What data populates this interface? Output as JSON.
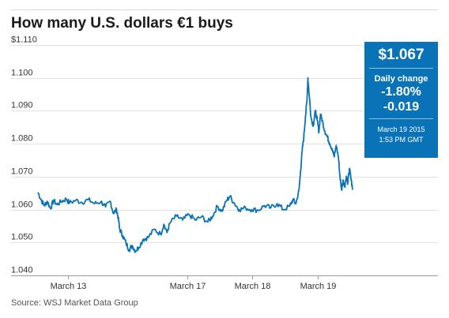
{
  "chart_data": {
    "type": "line",
    "title": "How many U.S. dollars €1 buys",
    "source": "Source: WSJ Market Data Group",
    "xlabel": "",
    "ylabel": "",
    "ylim": [
      1.04,
      1.11
    ],
    "y_ticks": [
      "$1.110",
      "1.100",
      "1.090",
      "1.080",
      "1.070",
      "1.060",
      "1.050",
      "1.040"
    ],
    "y_tick_values": [
      1.11,
      1.1,
      1.09,
      1.08,
      1.07,
      1.06,
      1.05,
      1.04
    ],
    "x_ticks": [
      {
        "label": "March 13",
        "x": 0.095
      },
      {
        "label": "March 17",
        "x": 0.475
      },
      {
        "label": "March 18",
        "x": 0.68
      },
      {
        "label": "March 19",
        "x": 0.89
      }
    ],
    "grid": true,
    "legend": "none",
    "series": [
      {
        "color": "#0a73b8",
        "points": [
          [
            0.0,
            1.0652
          ],
          [
            0.01,
            1.063
          ],
          [
            0.02,
            1.0612
          ],
          [
            0.03,
            1.0625
          ],
          [
            0.04,
            1.0603
          ],
          [
            0.05,
            1.0628
          ],
          [
            0.06,
            1.0615
          ],
          [
            0.075,
            1.0625
          ],
          [
            0.09,
            1.0632
          ],
          [
            0.1,
            1.062
          ],
          [
            0.12,
            1.0628
          ],
          [
            0.14,
            1.0622
          ],
          [
            0.16,
            1.063
          ],
          [
            0.18,
            1.0618
          ],
          [
            0.2,
            1.0624
          ],
          [
            0.215,
            1.0608
          ],
          [
            0.23,
            1.0625
          ],
          [
            0.24,
            1.0588
          ],
          [
            0.25,
            1.06
          ],
          [
            0.255,
            1.0575
          ],
          [
            0.26,
            1.054
          ],
          [
            0.27,
            1.052
          ],
          [
            0.28,
            1.0498
          ],
          [
            0.29,
            1.0478
          ],
          [
            0.3,
            1.049
          ],
          [
            0.31,
            1.0474
          ],
          [
            0.32,
            1.0485
          ],
          [
            0.335,
            1.051
          ],
          [
            0.35,
            1.0515
          ],
          [
            0.37,
            1.054
          ],
          [
            0.39,
            1.0525
          ],
          [
            0.4,
            1.0555
          ],
          [
            0.41,
            1.053
          ],
          [
            0.42,
            1.056
          ],
          [
            0.44,
            1.058
          ],
          [
            0.46,
            1.0568
          ],
          [
            0.48,
            1.0585
          ],
          [
            0.5,
            1.0568
          ],
          [
            0.52,
            1.0578
          ],
          [
            0.54,
            1.0562
          ],
          [
            0.555,
            1.058
          ],
          [
            0.57,
            1.061
          ],
          [
            0.585,
            1.0595
          ],
          [
            0.6,
            1.0628
          ],
          [
            0.61,
            1.064
          ],
          [
            0.625,
            1.0618
          ],
          [
            0.64,
            1.06
          ],
          [
            0.66,
            1.0605
          ],
          [
            0.68,
            1.06
          ],
          [
            0.7,
            1.0598
          ],
          [
            0.72,
            1.0612
          ],
          [
            0.74,
            1.0605
          ],
          [
            0.76,
            1.0618
          ],
          [
            0.78,
            1.06
          ],
          [
            0.8,
            1.061
          ],
          [
            0.81,
            1.063
          ],
          [
            0.82,
            1.0618
          ],
          [
            0.83,
            1.066
          ],
          [
            0.835,
            1.072
          ],
          [
            0.84,
            1.078
          ],
          [
            0.845,
            1.082
          ],
          [
            0.85,
            1.088
          ],
          [
            0.855,
            1.093
          ],
          [
            0.858,
            1.1
          ],
          [
            0.862,
            1.095
          ],
          [
            0.868,
            1.088
          ],
          [
            0.875,
            1.0855
          ],
          [
            0.882,
            1.09
          ],
          [
            0.888,
            1.087
          ],
          [
            0.893,
            1.0835
          ],
          [
            0.898,
            1.089
          ],
          [
            0.905,
            1.0865
          ],
          [
            0.912,
            1.0838
          ],
          [
            0.92,
            1.082
          ],
          [
            0.928,
            1.08
          ],
          [
            0.935,
            1.0785
          ],
          [
            0.942,
            1.076
          ],
          [
            0.948,
            1.0795
          ],
          [
            0.955,
            1.076
          ],
          [
            0.96,
            1.07
          ],
          [
            0.965,
            1.066
          ],
          [
            0.97,
            1.069
          ],
          [
            0.975,
            1.067
          ],
          [
            0.98,
            1.07
          ],
          [
            0.985,
            1.068
          ],
          [
            0.99,
            1.0725
          ],
          [
            0.995,
            1.0695
          ],
          [
            1.0,
            1.066
          ]
        ]
      }
    ]
  },
  "panel": {
    "price": "$1.067",
    "daily_change_label": "Daily change",
    "percent": "-1.80%",
    "absolute": "-0.019",
    "date": "March 19 2015",
    "time": "1:53 PM GMT"
  }
}
